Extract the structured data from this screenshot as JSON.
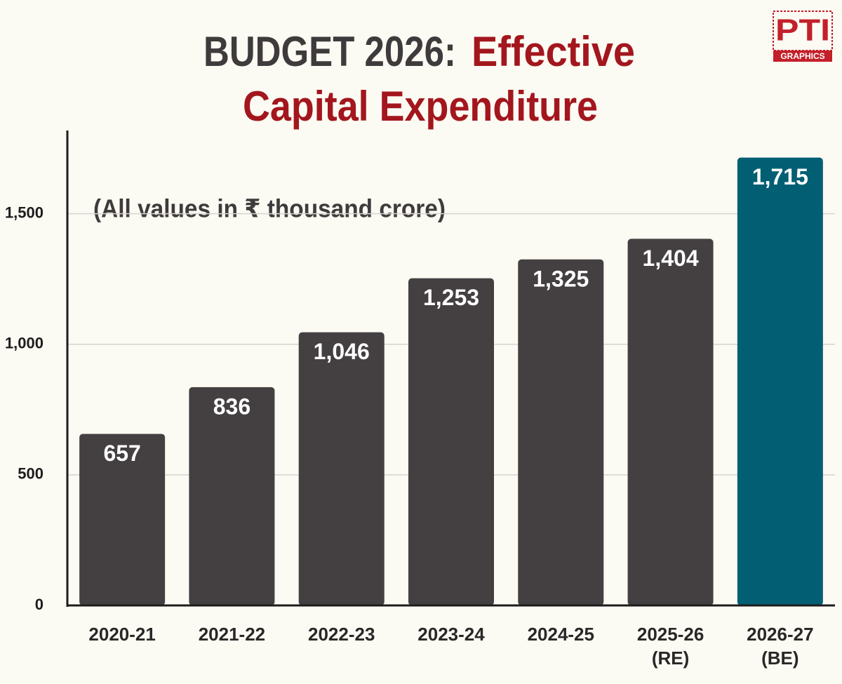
{
  "chart_data": {
    "type": "bar",
    "title": [
      "BUDGET 2026:",
      "Effective",
      "Capital Expenditure"
    ],
    "annotation": "(All values in ₹ thousand crore)",
    "categories": [
      "2020-21",
      "2021-22",
      "2022-23",
      "2023-24",
      "2024-25",
      "2025-26 (RE)",
      "2026-27 (BE)"
    ],
    "values": [
      657,
      836,
      1046,
      1253,
      1325,
      1404,
      1715
    ],
    "value_labels": [
      "657",
      "836",
      "1,046",
      "1,253",
      "1,325",
      "1,404",
      "1,715"
    ],
    "colors": [
      "#443f40",
      "#443f40",
      "#443f40",
      "#443f40",
      "#443f40",
      "#443f40",
      "#025f73"
    ],
    "ylim": [
      0,
      1800
    ],
    "yticks": [
      0,
      500,
      {
        "value": 1000,
        "label": "1,000"
      },
      {
        "value": 1500,
        "label": "1,500"
      }
    ],
    "grid": true
  },
  "logo": {
    "name": "PTI",
    "sub": "GRAPHICS"
  }
}
